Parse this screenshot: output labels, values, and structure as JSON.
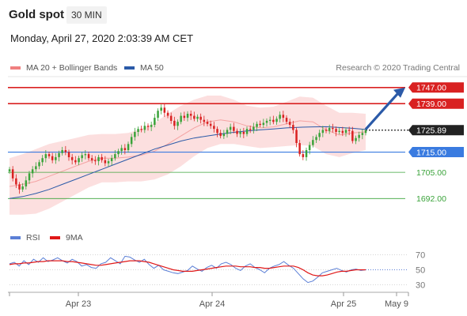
{
  "header": {
    "title": "Gold spot",
    "timeframe": "30 MIN",
    "datetime": "Monday, April 27, 2020 2:03:39 AM CET"
  },
  "legend": {
    "main": [
      {
        "label": "MA 20 + Bollinger Bands",
        "color": "#f08080"
      },
      {
        "label": "MA 50",
        "color": "#2b5aa8"
      }
    ],
    "rsi": [
      {
        "label": "RSI",
        "color": "#5b7fd6"
      },
      {
        "label": "9MA",
        "color": "#e01818"
      }
    ]
  },
  "credit": "Research © 2020 Trading Central",
  "colors": {
    "resistance": "#d92121",
    "pivot": "#3a7be0",
    "support": "#3aa33a",
    "candle_up": "#3aa33a",
    "candle_down": "#d92121",
    "arrow": "#2b5aa8",
    "bands": "#fbd9d9"
  },
  "chart_data": [
    {
      "type": "line",
      "title": "Gold spot",
      "instrument": "Gold spot",
      "timeframe": "30 MIN",
      "x_ticks": [
        "Apr 23",
        "Apr 24",
        "Apr 25",
        "May 9"
      ],
      "ylim": [
        1680,
        1752
      ],
      "levels": [
        {
          "label": "1747.00",
          "value": 1747.0,
          "kind": "resistance"
        },
        {
          "label": "1739.00",
          "value": 1739.0,
          "kind": "resistance"
        },
        {
          "label": "1725.89",
          "value": 1725.89,
          "kind": "last"
        },
        {
          "label": "1715.00",
          "value": 1715.0,
          "kind": "pivot"
        },
        {
          "label": "1705.00",
          "value": 1705.0,
          "kind": "support"
        },
        {
          "label": "1692.00",
          "value": 1692.0,
          "kind": "support"
        }
      ],
      "last_price": 1725.89,
      "arrow_target": 1747.0,
      "close_series": [
        1706.5,
        1702.0,
        1699.0,
        1696.5,
        1698.0,
        1701.0,
        1704.5,
        1706.5,
        1708.0,
        1710.0,
        1712.0,
        1714.0,
        1713.0,
        1711.0,
        1712.5,
        1714.5,
        1716.0,
        1715.0,
        1712.5,
        1711.0,
        1710.0,
        1712.0,
        1713.5,
        1714.0,
        1712.0,
        1711.0,
        1710.5,
        1712.5,
        1711.0,
        1709.5,
        1710.5,
        1712.0,
        1714.0,
        1715.5,
        1717.0,
        1716.0,
        1719.0,
        1722.5,
        1725.0,
        1726.5,
        1726.0,
        1728.0,
        1727.5,
        1728.5,
        1732.0,
        1735.5,
        1737.0,
        1734.5,
        1733.0,
        1730.5,
        1728.0,
        1730.0,
        1733.0,
        1732.0,
        1734.0,
        1733.0,
        1731.5,
        1732.5,
        1731.0,
        1730.0,
        1729.0,
        1728.0,
        1726.5,
        1724.5,
        1723.0,
        1724.0,
        1726.0,
        1727.5,
        1725.5,
        1724.0,
        1725.0,
        1724.0,
        1726.5,
        1726.0,
        1727.5,
        1729.0,
        1728.5,
        1729.5,
        1730.5,
        1731.0,
        1730.0,
        1731.5,
        1733.5,
        1732.0,
        1730.0,
        1728.5,
        1726.0,
        1719.5,
        1714.0,
        1712.5,
        1716.0,
        1718.5,
        1721.0,
        1722.5,
        1724.5,
        1726.0,
        1725.5,
        1727.0,
        1726.5,
        1725.0,
        1725.5,
        1724.5,
        1726.0,
        1725.5,
        1720.5,
        1722.0,
        1723.5,
        1724.5,
        1725.89
      ],
      "ma50": [
        1692.0,
        1693.0,
        1694.5,
        1696.5,
        1699.0,
        1701.5,
        1704.0,
        1706.5,
        1709.0,
        1711.5,
        1714.0,
        1716.5,
        1718.5,
        1720.5,
        1722.0,
        1723.0,
        1724.0,
        1724.8,
        1725.5,
        1726.0,
        1726.5,
        1727.0,
        1727.3,
        1727.5,
        1727.6,
        1727.2,
        1726.8,
        1726.2
      ],
      "ma20": [
        1698.0,
        1699.0,
        1700.5,
        1703.0,
        1705.5,
        1708.0,
        1710.5,
        1712.0,
        1712.0,
        1712.5,
        1713.5,
        1715.5,
        1719.0,
        1723.0,
        1727.0,
        1730.0,
        1731.0,
        1730.0,
        1728.0,
        1727.0,
        1727.5,
        1729.0,
        1730.5,
        1730.0,
        1726.0,
        1723.5,
        1724.5,
        1725.0
      ]
    },
    {
      "type": "line",
      "title": "RSI",
      "ylim": [
        20,
        80
      ],
      "y_ticks": [
        70,
        50,
        30
      ],
      "series": [
        {
          "name": "RSI",
          "values": [
            58,
            60,
            55,
            62,
            57,
            64,
            60,
            66,
            61,
            63,
            66,
            62,
            59,
            64,
            61,
            55,
            57,
            53,
            52,
            58,
            60,
            66,
            62,
            58,
            68,
            67,
            63,
            60,
            64,
            57,
            52,
            56,
            50,
            48,
            46,
            45,
            47,
            49,
            55,
            51,
            48,
            53,
            56,
            52,
            58,
            60,
            57,
            52,
            49,
            55,
            58,
            53,
            50,
            46,
            52,
            55,
            57,
            61,
            56,
            52,
            45,
            38,
            33,
            35,
            40,
            46,
            48,
            50,
            52,
            49,
            47,
            50,
            51,
            49,
            50
          ]
        },
        {
          "name": "9MA",
          "values": [
            57,
            58,
            58,
            59,
            59,
            60,
            61,
            61,
            62,
            62,
            62,
            62,
            61,
            61,
            60,
            59,
            58,
            57,
            56,
            56,
            57,
            58,
            59,
            60,
            61,
            62,
            62,
            62,
            61,
            60,
            58,
            56,
            54,
            52,
            50,
            49,
            48,
            48,
            48,
            49,
            50,
            51,
            52,
            53,
            54,
            55,
            55,
            55,
            54,
            54,
            54,
            53,
            53,
            52,
            52,
            53,
            54,
            55,
            55,
            55,
            53,
            50,
            46,
            43,
            42,
            42,
            43,
            45,
            47,
            48,
            48,
            49,
            50,
            50,
            50
          ]
        }
      ]
    }
  ]
}
